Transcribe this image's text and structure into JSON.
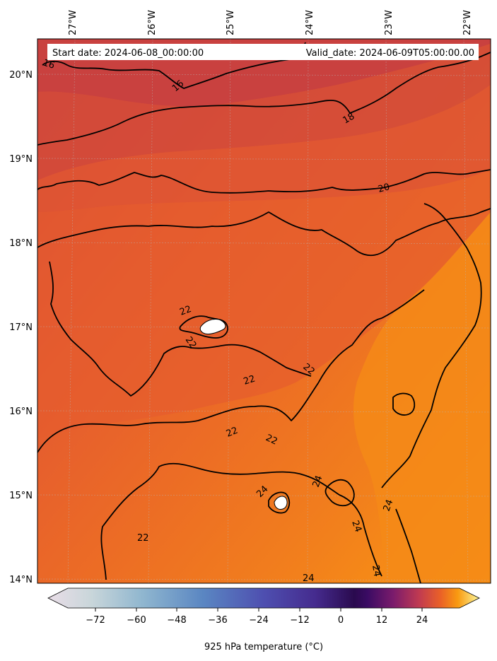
{
  "header": {
    "start_date": "Start date: 2024-06-08_00:00:00",
    "valid_date": "Valid_date: 2024-06-09T05:00:00.00"
  },
  "axes": {
    "lon_labels": [
      "27°W",
      "26°W",
      "25°W",
      "24°W",
      "23°W",
      "22°W"
    ],
    "lat_labels": [
      "20°N",
      "19°N",
      "18°N",
      "17°N",
      "16°N",
      "15°N",
      "14°N"
    ]
  },
  "contour_labels": [
    "16",
    "16",
    "18",
    "20",
    "22",
    "22",
    "22",
    "22",
    "22",
    "22",
    "24",
    "24",
    "24",
    "24",
    "22",
    "22",
    "24",
    "24"
  ],
  "colorbar": {
    "label": "925 hPa temperature ($^\\circ$C)",
    "display_label": "925 hPa temperature (°C)",
    "ticks": [
      "−72",
      "−60",
      "−48",
      "−36",
      "−24",
      "−12",
      "0",
      "12",
      "24"
    ],
    "colormap": "inferno_with_light_negative_range",
    "colors": {
      "warm_far": "#c94440",
      "warm_mid": "#e4592f",
      "warm_near": "#ee6e22",
      "hot": "#f6921a",
      "hottest": "#ffa000"
    }
  }
}
